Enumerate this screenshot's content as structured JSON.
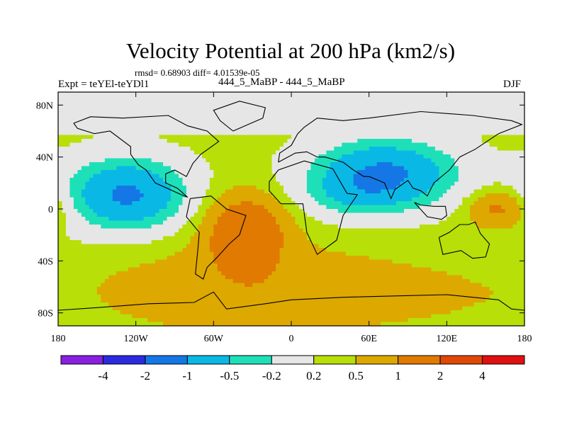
{
  "chart_data": {
    "type": "heatmap",
    "title": "Velocity Potential at 200 hPa (km2/s)",
    "stats_text": "rmsd= 0.68903 diff= 4.01539e-05",
    "left_label": "Expt = teYEl-teYDl1",
    "center_label": "444_5_MaBP - 444_5_MaBP",
    "right_label": "DJF",
    "x_ticks": [
      {
        "lon": -180,
        "label": "180"
      },
      {
        "lon": -120,
        "label": "120W"
      },
      {
        "lon": -60,
        "label": "60W"
      },
      {
        "lon": 0,
        "label": "0"
      },
      {
        "lon": 60,
        "label": "60E"
      },
      {
        "lon": 120,
        "label": "120E"
      },
      {
        "lon": 180,
        "label": "180"
      }
    ],
    "y_ticks": [
      {
        "lat": 80,
        "label": "80N"
      },
      {
        "lat": 40,
        "label": "40N"
      },
      {
        "lat": 0,
        "label": "0"
      },
      {
        "lat": -40,
        "label": "40S"
      },
      {
        "lat": -80,
        "label": "80S"
      }
    ],
    "xlim": [
      -180,
      180
    ],
    "ylim": [
      -90,
      90
    ],
    "colorbar": {
      "labels": [
        "-4",
        "-2",
        "-1",
        "-0.5",
        "-0.2",
        "0.2",
        "0.5",
        "1",
        "2",
        "4"
      ],
      "colors": [
        "#8a1fe0",
        "#2a2ae0",
        "#1577e5",
        "#0ab8e6",
        "#1ee0b8",
        "#e6e6e6",
        "#b8df08",
        "#dda800",
        "#e07a00",
        "#e04808",
        "#e01010"
      ]
    },
    "field_centers": [
      {
        "lon": -127,
        "lat": 11,
        "amp": -1.4,
        "sx": 33,
        "sy": 20
      },
      {
        "lon": 72,
        "lat": 27,
        "amp": -1.4,
        "sx": 40,
        "sy": 19
      },
      {
        "lon": 45,
        "lat": 8,
        "amp": -0.35,
        "sx": 28,
        "sy": 12
      },
      {
        "lon": -35,
        "lat": -18,
        "amp": 1.5,
        "sx": 20,
        "sy": 19
      },
      {
        "lon": 160,
        "lat": 0,
        "amp": 0.9,
        "sx": 16,
        "sy": 10
      },
      {
        "lon": 20,
        "lat": -65,
        "amp": 0.35,
        "sx": 120,
        "sy": 20
      },
      {
        "lon": -40,
        "lat": -55,
        "amp": 0.25,
        "sx": 70,
        "sy": 30
      }
    ],
    "field_background": 0.3,
    "polar_neutral_lat": 55,
    "neutral_bands": [
      {
        "lat": 25,
        "lon": -180,
        "lon2": 180,
        "amp": -0.12
      },
      {
        "lat": -35,
        "lon": -178,
        "lon2": -150,
        "amp": -0.15
      }
    ]
  }
}
